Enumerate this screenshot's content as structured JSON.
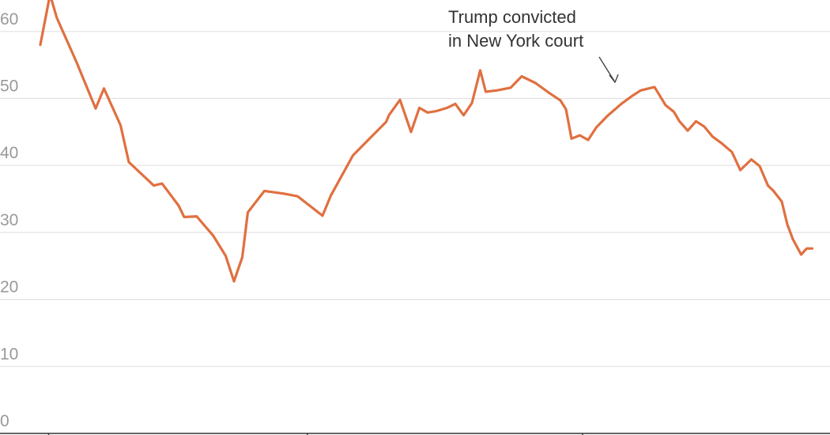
{
  "chart_data": {
    "type": "line",
    "title": "",
    "xlabel": "",
    "ylabel": "",
    "ylim": [
      0,
      65
    ],
    "grid": true,
    "legend": "none",
    "y_ticks": [
      {
        "value": 0,
        "label": "0"
      },
      {
        "value": 10,
        "label": "10"
      },
      {
        "value": 20,
        "label": "20"
      },
      {
        "value": 30,
        "label": "30"
      },
      {
        "value": 40,
        "label": "40"
      },
      {
        "value": 50,
        "label": "50"
      },
      {
        "value": 60,
        "label": "60"
      }
    ],
    "x_tick_positions": [
      6,
      193,
      392
    ],
    "xlim": [
      0,
      580
    ],
    "series": [
      {
        "color": "#e07040",
        "x": [
          0,
          7,
          12,
          26,
          40,
          46,
          58,
          64,
          82,
          88,
          100,
          104,
          113,
          125,
          134,
          140,
          146,
          150,
          162,
          176,
          186,
          204,
          210,
          226,
          238,
          250,
          252,
          260,
          268,
          274,
          280,
          286,
          294,
          300,
          306,
          312,
          318,
          322,
          330,
          340,
          348,
          358,
          368,
          376,
          380,
          384,
          390,
          396,
          402,
          410,
          420,
          428,
          434,
          444,
          452,
          458,
          462,
          468,
          474,
          480,
          486,
          492,
          500,
          506,
          514,
          520,
          526,
          530,
          536,
          540,
          544,
          550,
          554,
          558
        ],
        "values": [
          58,
          65.5,
          62,
          55.5,
          48.5,
          51.5,
          46,
          40.5,
          37,
          37.3,
          34,
          32.3,
          32.4,
          29.5,
          26.5,
          22.7,
          26.3,
          33,
          36.2,
          35.8,
          35.4,
          32.5,
          35.5,
          41.5,
          44,
          46.5,
          47.5,
          49.8,
          45,
          48.6,
          47.9,
          48.1,
          48.6,
          49.2,
          47.5,
          49.3,
          54.2,
          51,
          51.2,
          51.6,
          53.3,
          52.3,
          50.8,
          49.7,
          48.4,
          44,
          44.5,
          43.8,
          45.7,
          47.4,
          49.2,
          50.4,
          51.2,
          51.7,
          49,
          48,
          46.6,
          45.2,
          46.6,
          45.8,
          44.3,
          43.4,
          42,
          39.3,
          40.9,
          39.9,
          37,
          36.2,
          34.6,
          31.2,
          29,
          26.7,
          27.6,
          27.6
        ]
      }
    ],
    "annotations": [
      {
        "lines": [
          "Trump convicted",
          "in New York court"
        ],
        "x": 434,
        "y": 51.7
      }
    ]
  }
}
